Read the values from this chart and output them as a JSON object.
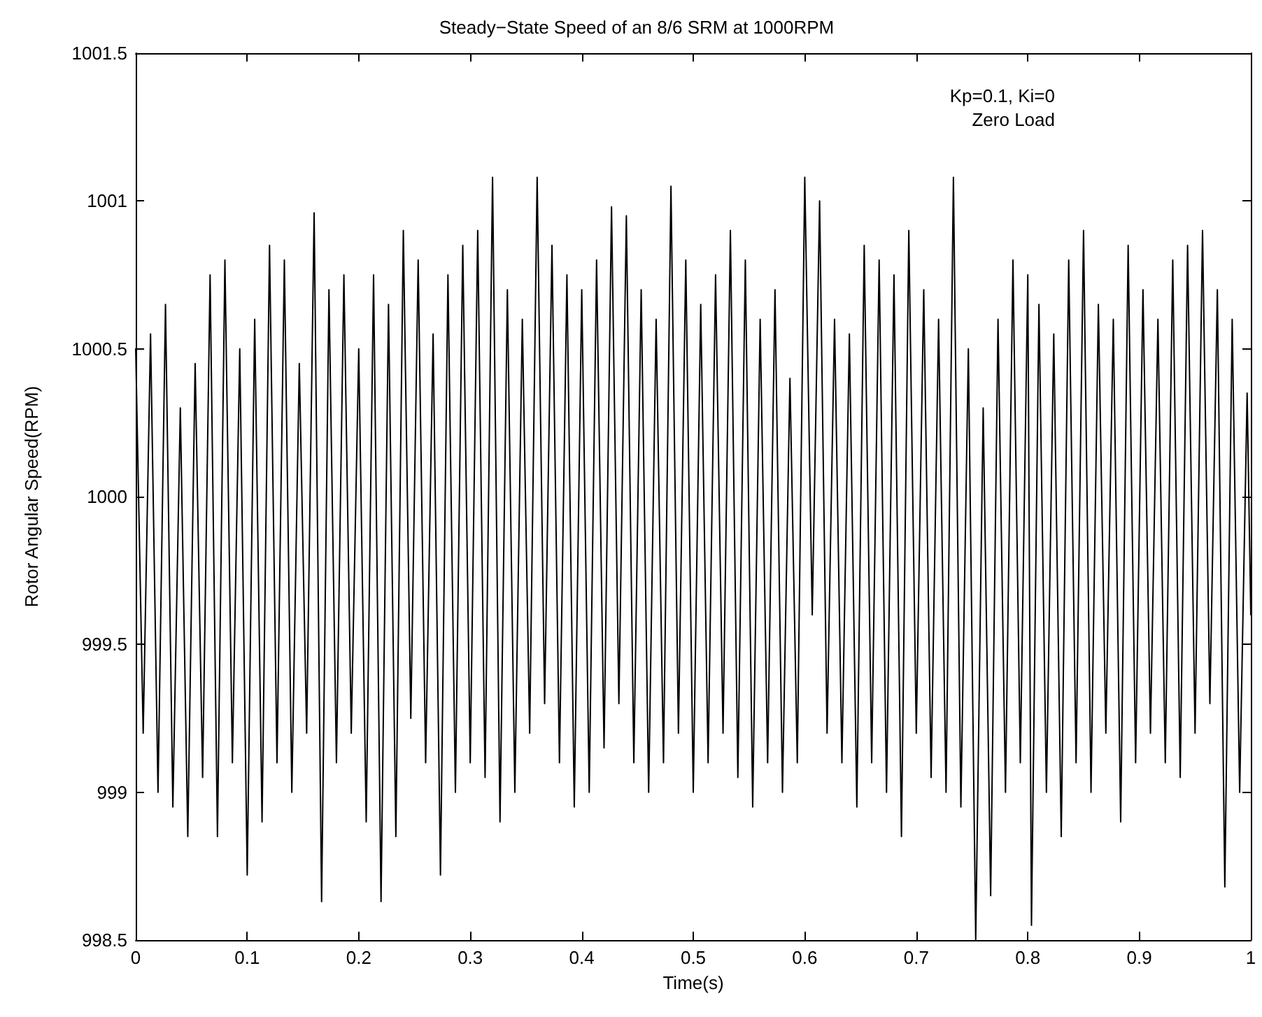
{
  "chart_data": {
    "type": "line",
    "title": "Steady−State Speed of an 8/6 SRM at 1000RPM",
    "xlabel": "Time(s)",
    "ylabel": "Rotor Angular Speed(RPM)",
    "annotations": [
      "Kp=0.1, Ki=0",
      "Zero Load"
    ],
    "xlim": [
      0,
      1
    ],
    "xticks": [
      0,
      0.1,
      0.2,
      0.3,
      0.4,
      0.5,
      0.6,
      0.7,
      0.8,
      0.9,
      1
    ],
    "ylim": [
      998.5,
      1001.5
    ],
    "yticks": [
      998.5,
      999,
      999.5,
      1000,
      1000.5,
      1001,
      1001.5
    ],
    "grid": false,
    "marker": "none",
    "line_style": "solid",
    "series": [
      {
        "color": "#000000",
        "x": [
          0,
          0.0067,
          0.0133,
          0.02,
          0.0267,
          0.0333,
          0.04,
          0.0467,
          0.0533,
          0.06,
          0.0667,
          0.0733,
          0.08,
          0.0867,
          0.0933,
          0.1,
          0.1067,
          0.1133,
          0.12,
          0.1267,
          0.1333,
          0.14,
          0.1467,
          0.1533,
          0.16,
          0.1667,
          0.1733,
          0.18,
          0.1867,
          0.1933,
          0.2,
          0.2067,
          0.2133,
          0.22,
          0.2267,
          0.2333,
          0.24,
          0.2467,
          0.2533,
          0.26,
          0.2667,
          0.2733,
          0.28,
          0.2867,
          0.2933,
          0.3,
          0.3067,
          0.3133,
          0.32,
          0.3267,
          0.3333,
          0.34,
          0.3467,
          0.3533,
          0.36,
          0.3667,
          0.3733,
          0.38,
          0.3867,
          0.3933,
          0.4,
          0.4067,
          0.4133,
          0.42,
          0.4267,
          0.4333,
          0.44,
          0.4467,
          0.4533,
          0.46,
          0.4667,
          0.4733,
          0.48,
          0.4867,
          0.4933,
          0.5,
          0.5067,
          0.5133,
          0.52,
          0.5267,
          0.5333,
          0.54,
          0.5467,
          0.5533,
          0.56,
          0.5667,
          0.5733,
          0.58,
          0.5867,
          0.5933,
          0.6,
          0.6067,
          0.6133,
          0.62,
          0.6267,
          0.6333,
          0.64,
          0.6467,
          0.6533,
          0.66,
          0.6667,
          0.6733,
          0.68,
          0.6867,
          0.6933,
          0.7,
          0.7067,
          0.7133,
          0.72,
          0.7267,
          0.7333,
          0.74,
          0.7467,
          0.7533,
          0.76,
          0.7667,
          0.7733,
          0.78,
          0.7867,
          0.7933,
          0.8,
          0.8033,
          0.81,
          0.8167,
          0.8233,
          0.83,
          0.8367,
          0.8433,
          0.85,
          0.8567,
          0.8633,
          0.87,
          0.8767,
          0.8833,
          0.89,
          0.8967,
          0.9033,
          0.91,
          0.9167,
          0.9233,
          0.93,
          0.9367,
          0.9433,
          0.95,
          0.9567,
          0.9633,
          0.97,
          0.9767,
          0.9833,
          0.99,
          0.9967,
          1
        ],
        "values": [
          1000.5,
          999.2,
          1000.55,
          999,
          1000.65,
          998.95,
          1000.3,
          998.85,
          1000.45,
          999.05,
          1000.75,
          998.85,
          1000.8,
          999.1,
          1000.5,
          998.72,
          1000.6,
          998.9,
          1000.85,
          999.1,
          1000.8,
          999,
          1000.45,
          999.2,
          1000.96,
          998.63,
          1000.7,
          999.1,
          1000.75,
          999.2,
          1000.5,
          998.9,
          1000.75,
          998.63,
          1000.65,
          998.85,
          1000.9,
          999.25,
          1000.8,
          999.1,
          1000.55,
          998.72,
          1000.75,
          999,
          1000.85,
          999.1,
          1000.9,
          999.05,
          1001.08,
          998.9,
          1000.7,
          999,
          1000.6,
          999.2,
          1001.08,
          999.3,
          1000.85,
          999.1,
          1000.75,
          998.95,
          1000.7,
          999,
          1000.8,
          999.15,
          1000.98,
          999.3,
          1000.95,
          999.1,
          1000.7,
          999,
          1000.6,
          999.1,
          1001.05,
          999.2,
          1000.8,
          999,
          1000.65,
          999.1,
          1000.75,
          999.2,
          1000.9,
          999.05,
          1000.8,
          998.95,
          1000.6,
          999.1,
          1000.7,
          999,
          1000.4,
          999.1,
          1001.08,
          999.6,
          1001,
          999.2,
          1000.6,
          999.1,
          1000.55,
          998.95,
          1000.85,
          999.1,
          1000.8,
          999,
          1000.75,
          998.85,
          1000.9,
          999.2,
          1000.7,
          999.05,
          1000.6,
          999,
          1001.08,
          998.95,
          1000.5,
          998.5,
          1000.3,
          998.65,
          1000.6,
          999,
          1000.8,
          999.1,
          1000.75,
          998.55,
          1000.65,
          999,
          1000.55,
          998.85,
          1000.8,
          999.1,
          1000.9,
          999,
          1000.65,
          999.2,
          1000.6,
          998.9,
          1000.85,
          999.1,
          1000.7,
          999.2,
          1000.6,
          999.1,
          1000.8,
          999.05,
          1000.85,
          999.2,
          1000.9,
          999.3,
          1000.7,
          998.68,
          1000.6,
          999,
          1000.35,
          999.6
        ]
      }
    ]
  }
}
